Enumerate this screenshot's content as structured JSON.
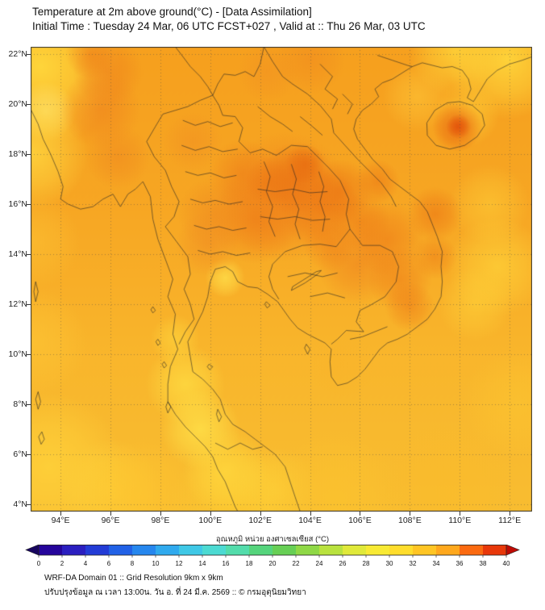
{
  "header": {
    "title": "Temperature at 2m above ground(°C) - [Data Assimilation]",
    "subtitle": "Initial Time : Tuesday 24 Mar, 06 UTC FCST+027 , Valid at :: Thu 26 Mar, 03 UTC"
  },
  "axes": {
    "lat_ticks": [
      22,
      20,
      18,
      16,
      14,
      12,
      10,
      8,
      6,
      4
    ],
    "lat_suffix": "°N",
    "lon_ticks": [
      94,
      96,
      98,
      100,
      102,
      104,
      106,
      108,
      110,
      112
    ],
    "lon_suffix": "°E",
    "lat_range": [
      3.71,
      22.29
    ],
    "lon_range": [
      92.8,
      112.9
    ]
  },
  "colorbar": {
    "label": "อุณหภูมิ หน่วย องศาเซลเซียส (°C)",
    "tick_min": 0,
    "tick_max": 40,
    "tick_step": 2,
    "under_arrow_color": "#17055f",
    "over_arrow_color": "#bf0b04",
    "segment_colors": [
      "#25059b",
      "#2b1fc0",
      "#233cd6",
      "#2161e6",
      "#2687ee",
      "#30aaee",
      "#3fc8e6",
      "#4cdad2",
      "#53dcab",
      "#55d47c",
      "#67cf55",
      "#8fd846",
      "#b9e23e",
      "#e0e93a",
      "#f8ea34",
      "#ffdd2c",
      "#ffc524",
      "#ffa81d",
      "#fb6a10",
      "#e8380a"
    ]
  },
  "footer": {
    "line1": "WRF-DA Domain 01 :: Grid Resolution 9km x 9km",
    "line2": "ปรับปรุงข้อมูล ณ เวลา 13:00น. วัน อ. ที่ 24 มี.ค. 2569 :: © กรมอุตุนิยมวิทยา"
  },
  "chart_data": {
    "type": "heatmap",
    "title": "Temperature at 2m above ground (°C) - [Data Assimilation]",
    "units": "°C",
    "model": "WRF-DA Domain 01",
    "grid_resolution": "9km x 9km",
    "init_time": "Tuesday 24 Mar, 06 UTC",
    "forecast_hour": "FCST+027",
    "valid_time": "Thu 26 Mar, 03 UTC",
    "lon_range_deg_e": [
      92.8,
      112.9
    ],
    "lat_range_deg_n": [
      3.71,
      22.29
    ],
    "scale_range_c": [
      0,
      40
    ],
    "dominant_field_c": "mostly 30-32 °C (orange), hot cores 33-36 °C over NE Thailand / central Myanmar / Hainan, cooler 26-28 °C (yellow) along west edge, far south and NE corner",
    "base_gradient": [
      "#f6a01e",
      "#f7a623",
      "#f9b62c",
      "#f8bd31"
    ],
    "blob_format": "[lon_deg_E, lat_deg_N, radius_deg, color_hex, alpha]",
    "field_blobs": [
      [
        93.2,
        21.5,
        3.2,
        "#ffd83c",
        0.95
      ],
      [
        93.4,
        19.7,
        1.2,
        "#ffe873",
        0.65
      ],
      [
        92.9,
        18.0,
        2.2,
        "#ffd840",
        0.8
      ],
      [
        92.9,
        14.5,
        1.9,
        "#fdc334",
        0.55
      ],
      [
        92.9,
        10.5,
        2.2,
        "#fec736",
        0.6
      ],
      [
        93.5,
        5.5,
        3.0,
        "#ffd23a",
        0.85
      ],
      [
        96.0,
        4.6,
        2.0,
        "#ffd43a",
        0.7
      ],
      [
        97.2,
        4.3,
        2.4,
        "#fec42f",
        0.75
      ],
      [
        101.0,
        4.0,
        2.6,
        "#fdc92f",
        0.75
      ],
      [
        102.6,
        4.6,
        1.7,
        "#ffd43a",
        0.6
      ],
      [
        105.0,
        4.2,
        2.8,
        "#fcc42e",
        0.7
      ],
      [
        109.5,
        4.5,
        2.8,
        "#fbbc2a",
        0.6
      ],
      [
        99.0,
        8.8,
        1.6,
        "#ffdc42",
        0.8
      ],
      [
        99.6,
        7.0,
        1.6,
        "#ffe048",
        0.85
      ],
      [
        100.6,
        5.3,
        1.7,
        "#ffd83e",
        0.8
      ],
      [
        98.6,
        10.6,
        1.0,
        "#ffd83e",
        0.6
      ],
      [
        100.6,
        13.05,
        0.8,
        "#ffdf4a",
        0.8
      ],
      [
        111.9,
        21.8,
        2.4,
        "#ffd83c",
        0.9
      ],
      [
        109.8,
        22.1,
        1.8,
        "#ffd83c",
        0.75
      ],
      [
        111.5,
        13.5,
        2.0,
        "#ffd43a",
        0.7
      ],
      [
        110.6,
        12.0,
        1.5,
        "#ffd43a",
        0.55
      ],
      [
        111.2,
        16.0,
        1.6,
        "#ffd43a",
        0.5
      ],
      [
        112.3,
        8.0,
        2.2,
        "#fdc731",
        0.55
      ],
      [
        110.3,
        19.6,
        1.3,
        "#ffd43a",
        0.6
      ],
      [
        108.3,
        20.3,
        1.4,
        "#fec93a",
        0.55
      ],
      [
        105.3,
        9.6,
        1.3,
        "#f9b42a",
        0.6
      ],
      [
        103.0,
        16.3,
        2.6,
        "#f0831c",
        0.8
      ],
      [
        103.5,
        17.0,
        1.5,
        "#ea7013",
        0.75
      ],
      [
        101.8,
        15.4,
        1.8,
        "#ef7d18",
        0.7
      ],
      [
        104.4,
        15.8,
        1.6,
        "#ee7a16",
        0.7
      ],
      [
        100.2,
        15.6,
        1.5,
        "#f08a1f",
        0.65
      ],
      [
        99.9,
        14.4,
        1.3,
        "#f18e22",
        0.6
      ],
      [
        101.3,
        17.2,
        1.4,
        "#ef8019",
        0.65
      ],
      [
        103.8,
        17.6,
        0.8,
        "#e86a10",
        0.7
      ],
      [
        102.4,
        16.9,
        1.0,
        "#ec7514",
        0.6
      ],
      [
        99.3,
        18.5,
        1.2,
        "#f18e22",
        0.5
      ],
      [
        95.6,
        19.8,
        1.6,
        "#f0861e",
        0.7
      ],
      [
        95.9,
        21.3,
        1.4,
        "#ef831c",
        0.65
      ],
      [
        96.3,
        17.9,
        1.3,
        "#f08a1f",
        0.6
      ],
      [
        95.2,
        22.0,
        1.0,
        "#ee7a16",
        0.55
      ],
      [
        105.2,
        16.5,
        1.3,
        "#ec7514",
        0.7
      ],
      [
        106.0,
        15.3,
        1.2,
        "#ee7a16",
        0.6
      ],
      [
        106.7,
        16.9,
        0.9,
        "#ec7514",
        0.55
      ],
      [
        105.9,
        13.6,
        1.6,
        "#f0861e",
        0.65
      ],
      [
        107.1,
        14.6,
        1.5,
        "#ef7d18",
        0.65
      ],
      [
        107.6,
        13.0,
        1.3,
        "#ef7d18",
        0.6
      ],
      [
        108.0,
        11.9,
        1.0,
        "#ee7a16",
        0.55
      ],
      [
        109.0,
        15.6,
        1.1,
        "#ec7514",
        0.6
      ],
      [
        109.0,
        13.9,
        0.9,
        "#ee7a16",
        0.5
      ],
      [
        104.8,
        14.4,
        1.1,
        "#ef7d18",
        0.55
      ],
      [
        109.9,
        19.1,
        1.0,
        "#e8620e",
        0.8
      ],
      [
        109.95,
        19.1,
        0.5,
        "#e2500a",
        0.8
      ],
      [
        104.0,
        21.8,
        1.4,
        "#f08a1f",
        0.55
      ],
      [
        102.3,
        21.3,
        1.2,
        "#f18e22",
        0.45
      ]
    ]
  }
}
